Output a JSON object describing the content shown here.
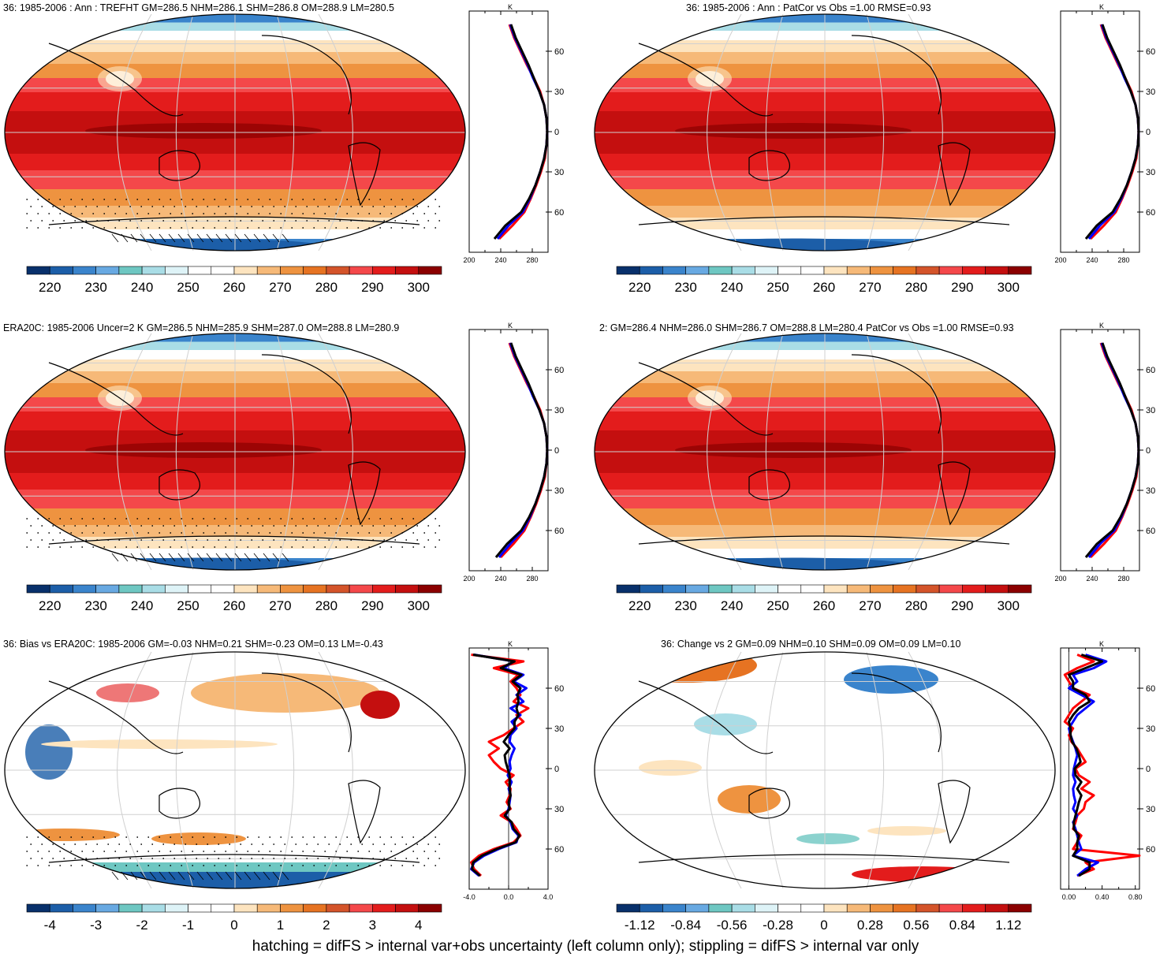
{
  "panels": [
    {
      "title": "36: 1985-2006 : Ann : TREFHT GM=286.5 NHM=286.1 SHM=286.8 OM=288.9 LM=280.5",
      "kind": "abs",
      "marks": "hatch",
      "colorbar_labels": [
        "220",
        "230",
        "240",
        "250",
        "260",
        "270",
        "280",
        "290",
        "300"
      ],
      "profile": {
        "unit": "K",
        "x_ticks": [
          "200",
          "240",
          "280"
        ],
        "x_range": [
          200,
          300
        ],
        "y_ticks": [
          "60N",
          "30N",
          "0",
          "30S",
          "60S"
        ]
      }
    },
    {
      "title": "36: 1985-2006 : Ann : PatCor vs Obs =1.00 RMSE=0.93",
      "kind": "abs",
      "marks": "none",
      "colorbar_labels": [
        "220",
        "230",
        "240",
        "250",
        "260",
        "270",
        "280",
        "290",
        "300"
      ],
      "profile": {
        "unit": "K",
        "x_ticks": [
          "200",
          "240",
          "280"
        ],
        "x_range": [
          200,
          300
        ],
        "y_ticks": [
          "60N",
          "30N",
          "0",
          "30S",
          "60S"
        ]
      }
    },
    {
      "title": "ERA20C: 1985-2006 Uncer=2 K GM=286.5 NHM=285.9 SHM=287.0 OM=288.8 LM=280.9",
      "kind": "abs",
      "marks": "hatch",
      "colorbar_labels": [
        "220",
        "230",
        "240",
        "250",
        "260",
        "270",
        "280",
        "290",
        "300"
      ],
      "profile": {
        "unit": "K",
        "x_ticks": [
          "200",
          "240",
          "280"
        ],
        "x_range": [
          200,
          300
        ],
        "y_ticks": [
          "60N",
          "30N",
          "0",
          "30S",
          "60S"
        ]
      }
    },
    {
      "title": "2: GM=286.4 NHM=286.0 SHM=286.7 OM=288.8 LM=280.4 PatCor vs Obs =1.00 RMSE=0.93",
      "kind": "abs",
      "marks": "none",
      "colorbar_labels": [
        "220",
        "230",
        "240",
        "250",
        "260",
        "270",
        "280",
        "290",
        "300"
      ],
      "profile": {
        "unit": "K",
        "x_ticks": [
          "200",
          "240",
          "280"
        ],
        "x_range": [
          200,
          300
        ],
        "y_ticks": [
          "60N",
          "30N",
          "0",
          "30S",
          "60S"
        ]
      }
    },
    {
      "title": "36: Bias vs ERA20C: 1985-2006 GM=-0.03 NHM=0.21 SHM=-0.23 OM=0.13 LM=-0.43",
      "kind": "bias",
      "marks": "hatch",
      "colorbar_labels": [
        "-4",
        "-3",
        "-2",
        "-1",
        "0",
        "1",
        "2",
        "3",
        "4"
      ],
      "profile": {
        "unit": "K",
        "x_ticks": [
          "-4.0",
          "0.0",
          "4.0"
        ],
        "x_range": [
          -4,
          4
        ],
        "y_ticks": [
          "60N",
          "30N",
          "0",
          "30S",
          "60S"
        ]
      }
    },
    {
      "title": "36: Change vs 2 GM=0.09 NHM=0.10 SHM=0.09 OM=0.09 LM=0.10",
      "kind": "change",
      "marks": "none",
      "colorbar_labels": [
        "-1.12",
        "-0.84",
        "-0.56",
        "-0.28",
        "0",
        "0.28",
        "0.56",
        "0.84",
        "1.12"
      ],
      "profile": {
        "unit": "K",
        "x_ticks": [
          "0.00",
          "0.40",
          "0.80"
        ],
        "x_range": [
          -0.1,
          0.85
        ],
        "y_ticks": [
          "60N",
          "30N",
          "0",
          "30S",
          "60S"
        ]
      }
    }
  ],
  "palettes": {
    "abs": [
      "#08306b",
      "#1c5ea8",
      "#3a84cc",
      "#68a9e2",
      "#6ec7c2",
      "#a9dde6",
      "#def3f7",
      "#ffffff",
      "#ffffff",
      "#fde4bf",
      "#f6b978",
      "#ee9340",
      "#e67322",
      "#d4542a",
      "#f4484a",
      "#e31c1c",
      "#c40f0f",
      "#8b0000"
    ],
    "diverging": [
      "#08306b",
      "#1c5ea8",
      "#3a84cc",
      "#68a9e2",
      "#6ec7c2",
      "#a9dde6",
      "#def3f7",
      "#ffffff",
      "#ffffff",
      "#fde4bf",
      "#f6b978",
      "#ee9340",
      "#e67322",
      "#d4542a",
      "#f4484a",
      "#e31c1c",
      "#c40f0f",
      "#8b0000"
    ]
  },
  "chart_data": [
    {
      "type": "map",
      "title": "36: 1985-2006 : Ann : TREFHT GM=286.5 NHM=286.1 SHM=286.8 OM=288.9 LM=280.5",
      "levels": [
        220,
        225,
        230,
        235,
        240,
        245,
        250,
        255,
        260,
        265,
        270,
        275,
        280,
        285,
        290,
        295,
        300
      ],
      "zonal_profile": {
        "lat": [
          80,
          70,
          60,
          50,
          40,
          30,
          20,
          10,
          0,
          -10,
          -20,
          -30,
          -40,
          -50,
          -60,
          -70,
          -80
        ],
        "model": [
          252,
          258,
          266,
          274,
          281,
          289,
          295,
          298,
          299,
          298,
          295,
          290,
          284,
          277,
          268,
          250,
          236
        ],
        "obs": [
          251,
          257,
          265,
          273,
          282,
          290,
          295,
          298,
          299,
          298,
          296,
          291,
          285,
          278,
          270,
          255,
          238
        ],
        "ref": [
          253,
          259,
          267,
          275,
          282,
          289,
          295,
          298,
          299,
          298,
          295,
          290,
          284,
          276,
          266,
          246,
          232
        ]
      }
    },
    {
      "type": "map",
      "title": "36: 1985-2006 : Ann : PatCor vs Obs =1.00 RMSE=0.93",
      "levels": [
        220,
        225,
        230,
        235,
        240,
        245,
        250,
        255,
        260,
        265,
        270,
        275,
        280,
        285,
        290,
        295,
        300
      ],
      "zonal_profile": {
        "lat": [
          80,
          70,
          60,
          50,
          40,
          30,
          20,
          10,
          0,
          -10,
          -20,
          -30,
          -40,
          -50,
          -60,
          -70,
          -80
        ],
        "model": [
          252,
          258,
          266,
          274,
          281,
          289,
          295,
          298,
          299,
          298,
          295,
          290,
          284,
          277,
          268,
          250,
          236
        ],
        "obs": [
          251,
          257,
          265,
          273,
          282,
          290,
          295,
          298,
          299,
          298,
          296,
          291,
          285,
          278,
          270,
          255,
          238
        ],
        "ref": [
          253,
          259,
          267,
          275,
          282,
          289,
          295,
          298,
          299,
          298,
          295,
          290,
          284,
          276,
          266,
          246,
          232
        ]
      }
    },
    {
      "type": "map",
      "title": "ERA20C: 1985-2006 Uncer=2 K GM=286.5 NHM=285.9 SHM=287.0 OM=288.8 LM=280.9",
      "levels": [
        220,
        225,
        230,
        235,
        240,
        245,
        250,
        255,
        260,
        265,
        270,
        275,
        280,
        285,
        290,
        295,
        300
      ],
      "zonal_profile": {
        "lat": [
          80,
          70,
          60,
          50,
          40,
          30,
          20,
          10,
          0,
          -10,
          -20,
          -30,
          -40,
          -50,
          -60,
          -70,
          -80
        ],
        "model": [
          252,
          258,
          266,
          274,
          281,
          289,
          295,
          298,
          299,
          298,
          295,
          290,
          284,
          277,
          268,
          252,
          238
        ],
        "obs": [
          251,
          257,
          265,
          273,
          282,
          290,
          295,
          298,
          299,
          298,
          296,
          291,
          285,
          278,
          270,
          256,
          240
        ],
        "ref": [
          253,
          259,
          267,
          275,
          282,
          289,
          295,
          298,
          299,
          298,
          295,
          290,
          284,
          276,
          266,
          248,
          234
        ]
      }
    },
    {
      "type": "map",
      "title": "2: GM=286.4 NHM=286.0 SHM=286.7 OM=288.8 LM=280.4 PatCor vs Obs =1.00 RMSE=0.93",
      "levels": [
        220,
        225,
        230,
        235,
        240,
        245,
        250,
        255,
        260,
        265,
        270,
        275,
        280,
        285,
        290,
        295,
        300
      ],
      "zonal_profile": {
        "lat": [
          80,
          70,
          60,
          50,
          40,
          30,
          20,
          10,
          0,
          -10,
          -20,
          -30,
          -40,
          -50,
          -60,
          -70,
          -80
        ],
        "model": [
          252,
          258,
          266,
          274,
          281,
          289,
          295,
          298,
          299,
          298,
          295,
          290,
          284,
          277,
          268,
          250,
          236
        ],
        "obs": [
          251,
          257,
          265,
          273,
          282,
          290,
          295,
          298,
          299,
          298,
          296,
          291,
          285,
          278,
          270,
          255,
          238
        ],
        "ref": [
          253,
          259,
          267,
          275,
          282,
          289,
          295,
          298,
          299,
          298,
          295,
          290,
          284,
          276,
          266,
          246,
          232
        ]
      }
    },
    {
      "type": "map",
      "title": "36: Bias vs ERA20C: 1985-2006 GM=-0.03 NHM=0.21 SHM=-0.23 OM=0.13 LM=-0.43",
      "levels": [
        -4.5,
        -4,
        -3.5,
        -3,
        -2.5,
        -2,
        -1.5,
        -1,
        -0.5,
        0,
        0.5,
        1,
        1.5,
        2,
        2.5,
        3,
        3.5,
        4,
        4.5
      ],
      "zonal_profile": {
        "lat": [
          85,
          80,
          75,
          70,
          65,
          60,
          55,
          50,
          45,
          40,
          35,
          30,
          25,
          20,
          15,
          10,
          5,
          0,
          -5,
          -10,
          -15,
          -20,
          -25,
          -30,
          -35,
          -40,
          -45,
          -50,
          -55,
          -60,
          -65,
          -70,
          -75,
          -80
        ],
        "model": [
          -3.5,
          0.5,
          -0.5,
          1.5,
          0.5,
          1.8,
          0.8,
          1.5,
          0.2,
          1.2,
          0.3,
          0.8,
          0.2,
          0.1,
          0.6,
          0.3,
          0.1,
          0.2,
          -0.1,
          0.3,
          0,
          0.2,
          0.1,
          0,
          -0.3,
          0.2,
          0.4,
          1.0,
          0.8,
          -1.0,
          -2.5,
          -3.5,
          -3.8,
          -3.0
        ],
        "obs": [
          -3.8,
          1.5,
          -1.5,
          1.0,
          0.2,
          0.8,
          1.2,
          0.5,
          2.0,
          0.8,
          1.5,
          0.5,
          -0.5,
          -2.0,
          -1.0,
          -2.0,
          -1.5,
          -0.8,
          0.5,
          -0.3,
          0.2,
          0.1,
          -0.2,
          0.2,
          -0.8,
          0.3,
          0.8,
          1.2,
          0.5,
          -1.5,
          -3.0,
          -3.8,
          -3.5,
          -2.8
        ],
        "ref": [
          -3.6,
          0.6,
          -0.8,
          1.3,
          0.4,
          1.2,
          0.9,
          1.0,
          0.8,
          1.0,
          0.6,
          0.6,
          0.0,
          -0.5,
          0.1,
          -0.4,
          -0.3,
          -0.1,
          0.1,
          0.1,
          0.1,
          0.2,
          0,
          0.1,
          -0.4,
          0.3,
          0.5,
          1.1,
          0.7,
          -1.2,
          -2.7,
          -3.6,
          -3.7,
          -2.9
        ]
      }
    },
    {
      "type": "map",
      "title": "36: Change vs 2 GM=0.09 NHM=0.10 SHM=0.09 OM=0.09 LM=0.10",
      "levels": [
        -1.26,
        -1.12,
        -0.98,
        -0.84,
        -0.7,
        -0.56,
        -0.42,
        -0.28,
        -0.14,
        0,
        0.14,
        0.28,
        0.42,
        0.56,
        0.7,
        0.84,
        0.98,
        1.12,
        1.26
      ],
      "zonal_profile": {
        "lat": [
          85,
          80,
          75,
          70,
          65,
          60,
          55,
          50,
          45,
          40,
          35,
          30,
          25,
          20,
          15,
          10,
          5,
          0,
          -5,
          -10,
          -15,
          -20,
          -25,
          -30,
          -35,
          -40,
          -45,
          -50,
          -55,
          -60,
          -65,
          -70,
          -75,
          -80
        ],
        "model": [
          0.2,
          0.45,
          0.3,
          0.05,
          0.1,
          0.0,
          0.15,
          0.3,
          0.2,
          0.1,
          0.05,
          0.0,
          0.02,
          0.05,
          0.08,
          0.1,
          0.08,
          0.06,
          0.05,
          0.08,
          0.05,
          0.06,
          0.08,
          0.05,
          0.1,
          0.05,
          0.08,
          0.1,
          0.12,
          0.15,
          0.05,
          0.35,
          0.2,
          0.1
        ],
        "obs": [
          0.1,
          0.3,
          0.1,
          -0.05,
          0.0,
          0.05,
          0.25,
          0.15,
          0.05,
          0.0,
          -0.05,
          0.05,
          0.0,
          0.03,
          0.1,
          0.15,
          0.2,
          0.08,
          0.12,
          0.25,
          0.15,
          0.3,
          0.2,
          0.18,
          0.1,
          0.08,
          0.05,
          0.15,
          0.1,
          0.05,
          0.85,
          0.2,
          0.3,
          0.1
        ],
        "ref": [
          0.15,
          0.4,
          0.2,
          0.0,
          0.05,
          0.05,
          0.2,
          0.25,
          0.12,
          0.05,
          0.0,
          0.02,
          0.02,
          0.04,
          0.09,
          0.12,
          0.14,
          0.07,
          0.08,
          0.15,
          0.1,
          0.15,
          0.12,
          0.1,
          0.08,
          0.06,
          0.06,
          0.12,
          0.1,
          0.1,
          0.05,
          0.25,
          0.25,
          0.12
        ]
      }
    }
  ],
  "footer": "hatching = difFS > internal var+obs uncertainty (left column only); stippling = difFS > internal var only"
}
